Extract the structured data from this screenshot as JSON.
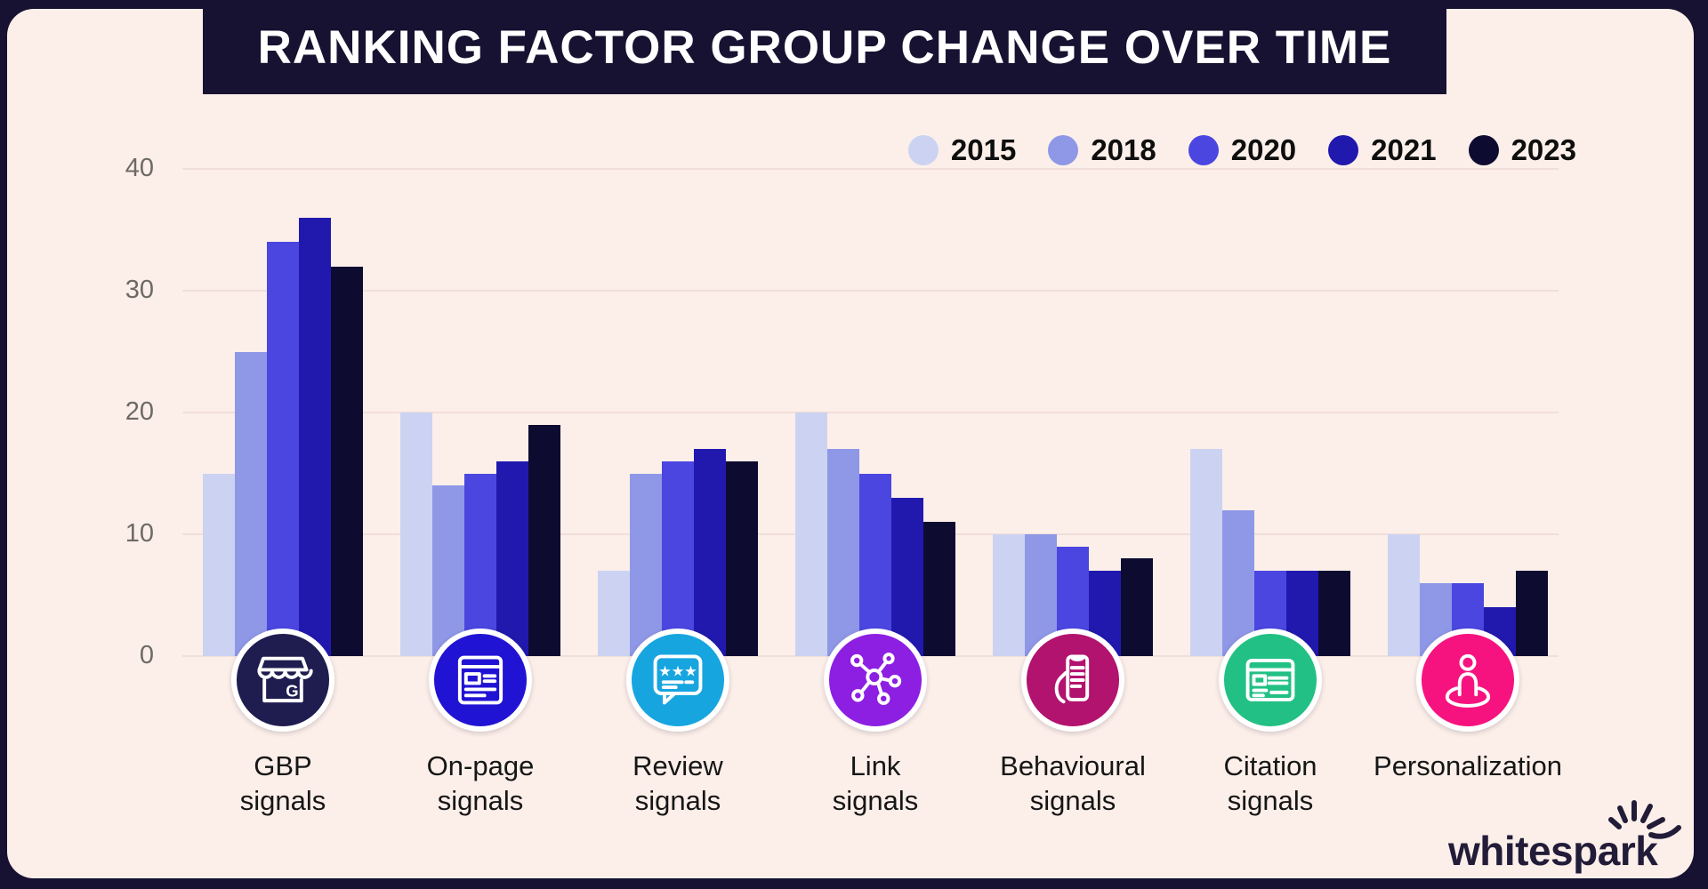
{
  "title": "RANKING FACTOR GROUP CHANGE OVER TIME",
  "chart_data": {
    "type": "bar",
    "title": "RANKING FACTOR GROUP CHANGE OVER TIME",
    "categories": [
      "GBP signals",
      "On-page signals",
      "Review signals",
      "Link signals",
      "Behavioural signals",
      "Citation signals",
      "Personalization"
    ],
    "category_label_lines": [
      [
        "GBP",
        "signals"
      ],
      [
        "On-page",
        "signals"
      ],
      [
        "Review",
        "signals"
      ],
      [
        "Link",
        "signals"
      ],
      [
        "Behavioural",
        "signals"
      ],
      [
        "Citation",
        "signals"
      ],
      [
        "Personalization"
      ]
    ],
    "series": [
      {
        "name": "2015",
        "color": "#ccd3f2",
        "values": [
          15,
          20,
          7,
          20,
          10,
          17,
          10
        ]
      },
      {
        "name": "2018",
        "color": "#8f97e7",
        "values": [
          25,
          14,
          15,
          17,
          10,
          12,
          6
        ]
      },
      {
        "name": "2020",
        "color": "#4b46e0",
        "values": [
          34,
          15,
          16,
          15,
          9,
          7,
          6
        ]
      },
      {
        "name": "2021",
        "color": "#2119ae",
        "values": [
          36,
          16,
          17,
          13,
          7,
          7,
          4
        ]
      },
      {
        "name": "2023",
        "color": "#0e0b31",
        "values": [
          32,
          19,
          16,
          11,
          8,
          7,
          7
        ]
      }
    ],
    "ylim": [
      0,
      40
    ],
    "yticks": [
      0,
      10,
      20,
      30,
      40
    ],
    "grid": true,
    "legend_position": "top-right"
  },
  "category_icons": [
    {
      "name": "storefront-gbp-icon",
      "color": "#1f1c50"
    },
    {
      "name": "onpage-browser-icon",
      "color": "#2113d4"
    },
    {
      "name": "review-bubble-icon",
      "color": "#17a5e0"
    },
    {
      "name": "link-network-icon",
      "color": "#8d1fe2"
    },
    {
      "name": "behavioural-phone-icon",
      "color": "#b2136e"
    },
    {
      "name": "citation-webpage-icon",
      "color": "#22c084"
    },
    {
      "name": "personalization-person-icon",
      "color": "#f7137f"
    }
  ],
  "logo": {
    "text": "whitespark",
    "icon": "spark-burst-icon"
  },
  "colors": {
    "outer_bg": "#171231",
    "panel_bg": "#fcefe9",
    "grid": "#f0ded9",
    "axis_label": "#6e6965",
    "category_label": "#161616",
    "legend_label": "#0e0e0e",
    "title_text": "#ffffff"
  }
}
